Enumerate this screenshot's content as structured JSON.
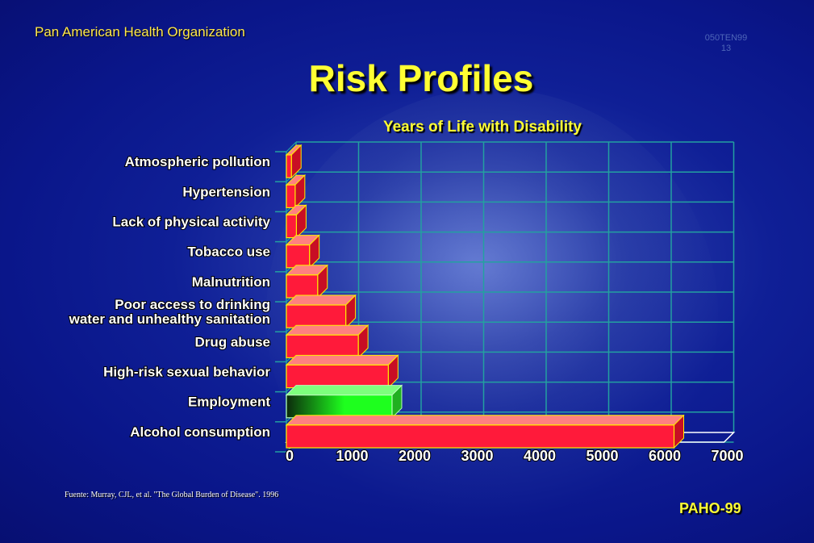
{
  "header": {
    "organization": "Pan American Health Organization",
    "slide_code_line1": "050TEN99",
    "slide_code_line2": "13",
    "title": "Risk Profiles"
  },
  "footer": {
    "source": "Fuente: Murray, CJL, et al. \"The Global Burden of Disease\". 1996",
    "tag": "PAHO-99"
  },
  "colors": {
    "bar": "#ff1a3a",
    "bar_highlight": "#1eff1e",
    "title": "#ffff33",
    "grid": "#23a0a0"
  },
  "chart_data": {
    "type": "bar",
    "orientation": "horizontal",
    "title": "Years of Life with Disability",
    "xlabel": "",
    "ylabel": "",
    "xlim": [
      0,
      7000
    ],
    "xticks": [
      "0",
      "1000",
      "2000",
      "3000",
      "4000",
      "5000",
      "6000",
      "7000"
    ],
    "grid": true,
    "categories": [
      {
        "label": "Atmospheric pollution",
        "value": 80,
        "highlight": false
      },
      {
        "label": "Hypertension",
        "value": 140,
        "highlight": false
      },
      {
        "label": "Lack of physical activity",
        "value": 160,
        "highlight": false
      },
      {
        "label": "Tobacco use",
        "value": 370,
        "highlight": false
      },
      {
        "label": "Malnutrition",
        "value": 500,
        "highlight": false
      },
      {
        "label": "Poor access to drinking\nwater and unhealthy sanitation",
        "value": 950,
        "highlight": false
      },
      {
        "label": "Drug abuse",
        "value": 1150,
        "highlight": false
      },
      {
        "label": "High-risk sexual behavior",
        "value": 1630,
        "highlight": false
      },
      {
        "label": "Employment",
        "value": 1690,
        "highlight": true
      },
      {
        "label": "Alcohol consumption",
        "value": 6200,
        "highlight": false
      }
    ]
  }
}
